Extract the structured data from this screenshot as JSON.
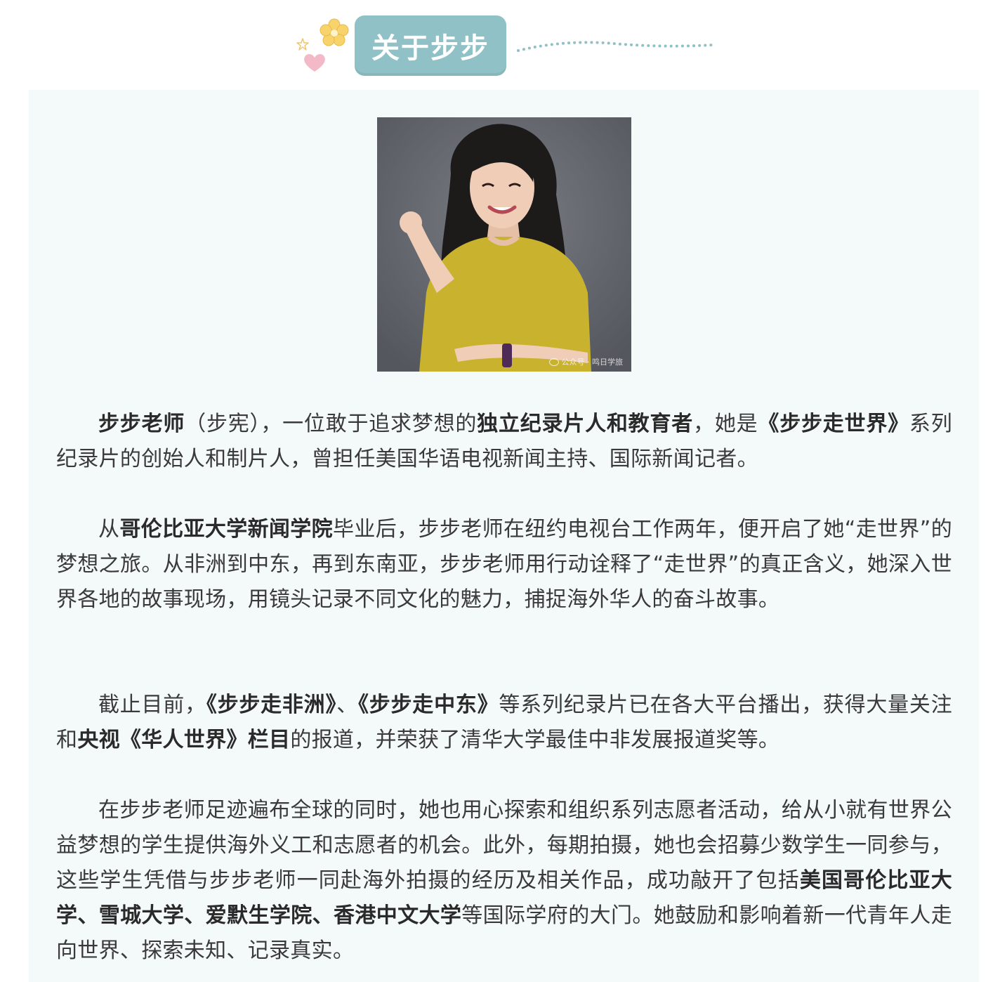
{
  "header": {
    "title": "关于步步"
  },
  "photo": {
    "alt": "步步老师",
    "watermark": "公众号 · 鸣日学旅"
  },
  "paragraphs": {
    "p1": {
      "s1": "步步老师",
      "s2": "（步宪），一位敢于追求梦想的",
      "s3": "独立纪录片人和教育者",
      "s4": "，她是",
      "s5": "《步步走世界》",
      "s6": "系列纪录片的创始人和制片人，曾担任美国华语电视新闻主持、国际新闻记者。"
    },
    "p2": {
      "s1": "从",
      "s2": "哥伦比亚大学新闻学院",
      "s3": "毕业后，步步老师在纽约电视台工作两年，便开启了她“走世界”的梦想之旅。从非洲到中东，再到东南亚，步步老师用行动诠释了“走世界”的真正含义，她深入世界各地的故事现场，用镜头记录不同文化的魅力，捕捉海外华人的奋斗故事。"
    },
    "p3": {
      "s1": "截止目前，",
      "s2": "《步步走非洲》",
      "s3": "、",
      "s4": "《步步走中东》",
      "s5": "等系列纪录片已在各大平台播出，获得大量关注和",
      "s6": "央视《华人世界》栏目",
      "s7": "的报道，并荣获了清华大学最佳中非发展报道奖等。"
    },
    "p4": {
      "s1": "在步步老师足迹遍布全球的同时，她也用心探索和组织系列志愿者活动，给从小就有世界公益梦想的学生提供海外义工和志愿者的机会。此外，每期拍摄，她也会招募少数学生一同参与，这些学生凭借与步步老师一同赴海外拍摄的经历及相关作品，成功敲开了包括",
      "s2": "美国哥伦比亚大学、雪城大学、爱默生学院、香港中文大学",
      "s3": "等国际学府的大门。她鼓励和影响着新一代青年人走向世界、探索未知、记录真实。"
    }
  },
  "colors": {
    "accent_teal": "#8fc1c6",
    "panel_bg": "#f4f9f9",
    "flower_yellow": "#f8d36b",
    "heart_pink": "#f4b9c6"
  },
  "icons": {
    "flower": "flower-icon",
    "star": "star-icon",
    "heart": "heart-icon",
    "dots": "dotted-line-divider"
  }
}
